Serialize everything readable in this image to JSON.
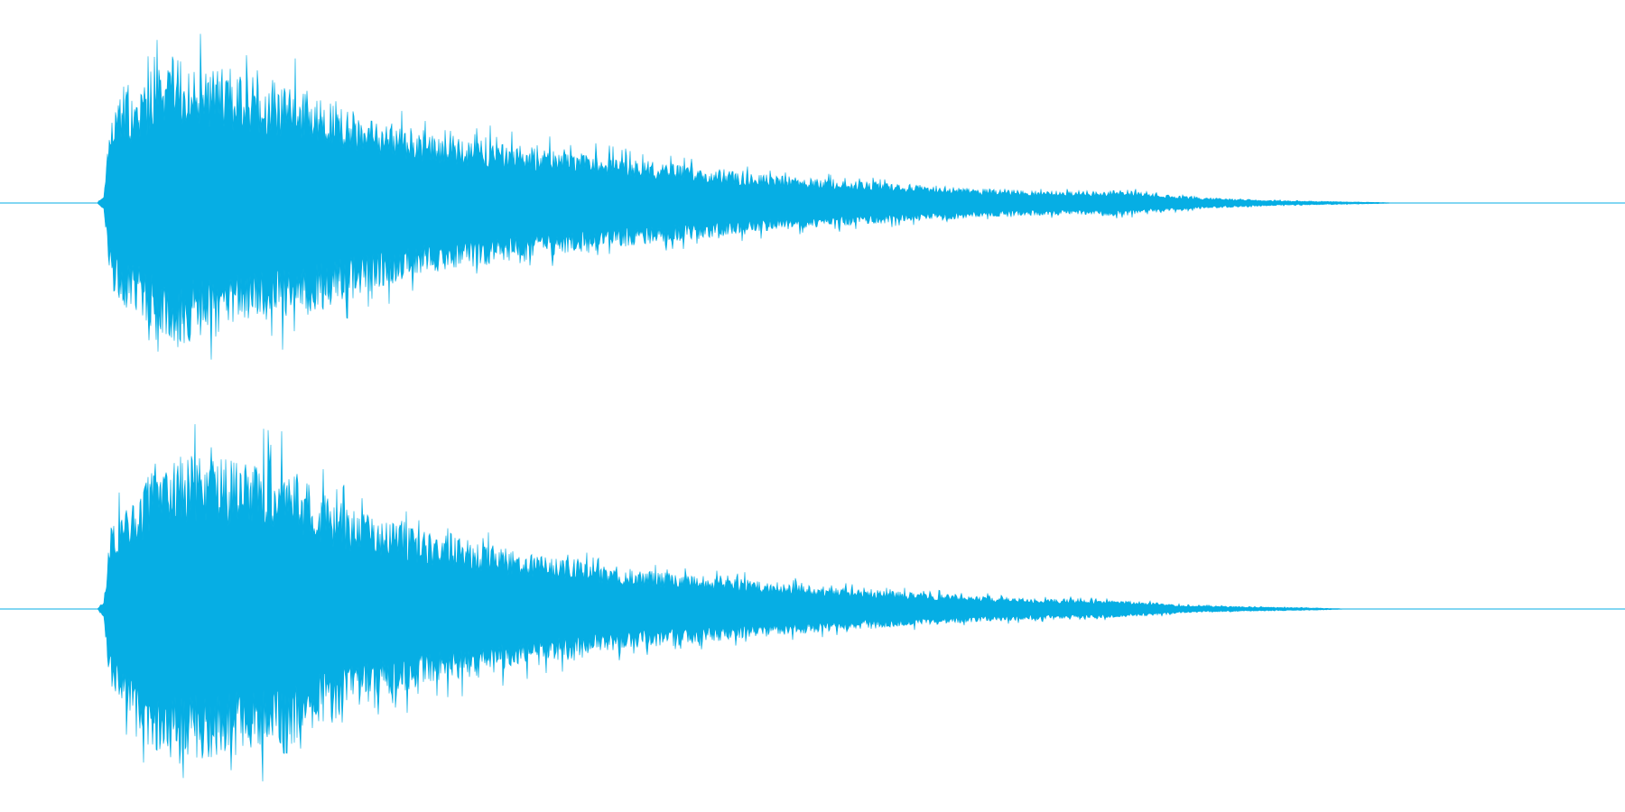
{
  "waveform": {
    "color": "#06aee4",
    "channel_count": 2,
    "channels": [
      {
        "name": "channel-1",
        "envelope": [
          [
            0.0,
            0.0
          ],
          [
            0.06,
            0.0
          ],
          [
            0.064,
            0.05
          ],
          [
            0.068,
            0.45
          ],
          [
            0.075,
            0.55
          ],
          [
            0.09,
            0.62
          ],
          [
            0.105,
            0.78
          ],
          [
            0.12,
            0.72
          ],
          [
            0.14,
            0.7
          ],
          [
            0.16,
            0.64
          ],
          [
            0.18,
            0.62
          ],
          [
            0.2,
            0.56
          ],
          [
            0.23,
            0.46
          ],
          [
            0.26,
            0.38
          ],
          [
            0.3,
            0.33
          ],
          [
            0.34,
            0.28
          ],
          [
            0.38,
            0.24
          ],
          [
            0.42,
            0.2
          ],
          [
            0.46,
            0.16
          ],
          [
            0.5,
            0.13
          ],
          [
            0.54,
            0.11
          ],
          [
            0.58,
            0.09
          ],
          [
            0.62,
            0.07
          ],
          [
            0.66,
            0.06
          ],
          [
            0.69,
            0.07
          ],
          [
            0.71,
            0.05
          ],
          [
            0.74,
            0.03
          ],
          [
            0.78,
            0.015
          ],
          [
            0.82,
            0.008
          ],
          [
            0.845,
            0.004
          ],
          [
            0.86,
            0.0
          ],
          [
            1.0,
            0.0
          ]
        ]
      },
      {
        "name": "channel-2",
        "envelope": [
          [
            0.0,
            0.0
          ],
          [
            0.06,
            0.0
          ],
          [
            0.064,
            0.05
          ],
          [
            0.068,
            0.45
          ],
          [
            0.08,
            0.55
          ],
          [
            0.095,
            0.75
          ],
          [
            0.115,
            0.82
          ],
          [
            0.135,
            0.8
          ],
          [
            0.155,
            0.76
          ],
          [
            0.175,
            0.78
          ],
          [
            0.195,
            0.62
          ],
          [
            0.22,
            0.52
          ],
          [
            0.25,
            0.44
          ],
          [
            0.29,
            0.36
          ],
          [
            0.33,
            0.29
          ],
          [
            0.37,
            0.23
          ],
          [
            0.4,
            0.2
          ],
          [
            0.44,
            0.17
          ],
          [
            0.48,
            0.14
          ],
          [
            0.52,
            0.11
          ],
          [
            0.56,
            0.09
          ],
          [
            0.6,
            0.07
          ],
          [
            0.64,
            0.055
          ],
          [
            0.67,
            0.05
          ],
          [
            0.7,
            0.04
          ],
          [
            0.73,
            0.02
          ],
          [
            0.77,
            0.012
          ],
          [
            0.81,
            0.006
          ],
          [
            0.83,
            0.0
          ],
          [
            1.0,
            0.0
          ]
        ]
      }
    ]
  }
}
